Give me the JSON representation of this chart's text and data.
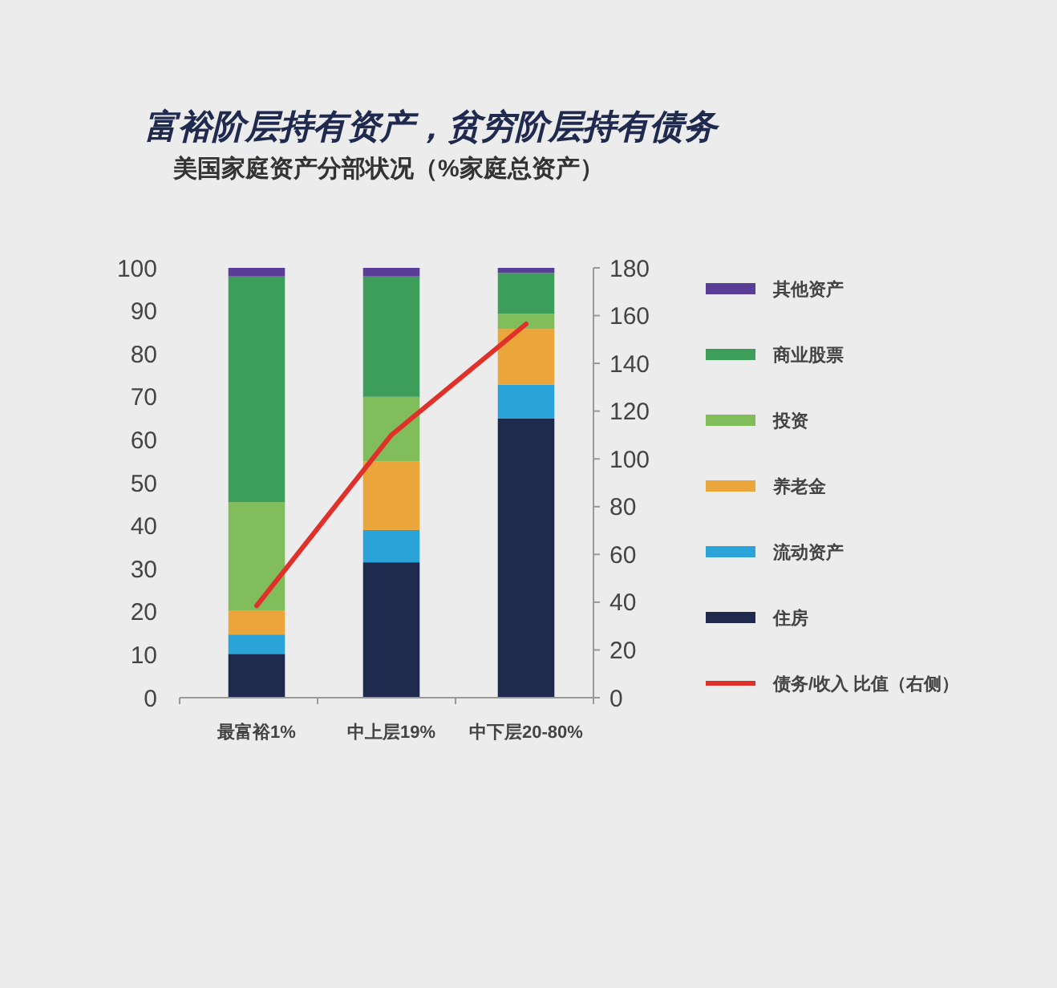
{
  "chart_data": {
    "type": "bar",
    "title": "富裕阶层持有资产，贫穷阶层持有债务",
    "subtitle": "美国家庭资产分部状况（%家庭总资产）",
    "categories": [
      "最富裕1%",
      "中上层19%",
      "中下层20-80%"
    ],
    "stacked": true,
    "series": [
      {
        "name": "住房",
        "color": "#1f2a4e",
        "values": [
          10.2,
          31.5,
          65
        ]
      },
      {
        "name": "流动资产",
        "color": "#2aa3d8",
        "values": [
          4.5,
          7.5,
          7.8
        ]
      },
      {
        "name": "养老金",
        "color": "#eaa63a",
        "values": [
          5.5,
          16,
          13
        ]
      },
      {
        "name": "投资",
        "color": "#82bd5c",
        "values": [
          25.3,
          15,
          3.5
        ]
      },
      {
        "name": "商业股票",
        "color": "#3c9e5a",
        "values": [
          52.5,
          28,
          9.5
        ]
      },
      {
        "name": "其他资产",
        "color": "#5a3d96",
        "values": [
          2,
          2,
          1.2
        ]
      },
      {
        "name": "债务/收入 比值（右侧）",
        "type": "line",
        "axis": "y2",
        "color": "#e0302a",
        "values": [
          38.5,
          110,
          156.5
        ]
      }
    ],
    "ylim": [
      0,
      100
    ],
    "yticks": [
      0,
      10,
      20,
      30,
      40,
      50,
      60,
      70,
      80,
      90,
      100
    ],
    "y2lim": [
      0,
      180
    ],
    "y2ticks": [
      0,
      20,
      40,
      60,
      80,
      100,
      120,
      140,
      160,
      180
    ],
    "grid": false,
    "legend": "right",
    "marker": "none",
    "line_style": "solid"
  }
}
